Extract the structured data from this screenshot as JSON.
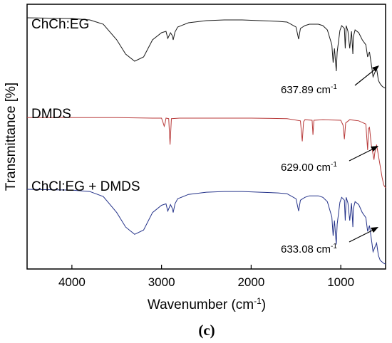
{
  "chart_data": {
    "type": "line",
    "title": "",
    "xlabel": "Wavenumber (cm",
    "xlabel_sup": "-1",
    "xlabel_end": ")",
    "ylabel": "Transmittance [%]",
    "panel_label": "(c)",
    "xlim": [
      4500,
      500
    ],
    "x_reversed": true,
    "xticks": [
      4000,
      3000,
      2000,
      1000
    ],
    "xtick_labels": [
      "4000",
      "3000",
      "2000",
      "1000"
    ],
    "y_ticks_shown": false,
    "series": [
      {
        "name": "ChCh:EG",
        "color": "#1a1a1a",
        "annotation": "637.89 cm",
        "annotation_sup": "-1",
        "annotation_x": 637.89,
        "x": [
          4500,
          4000,
          3800,
          3650,
          3500,
          3400,
          3300,
          3200,
          3100,
          3000,
          2950,
          2930,
          2900,
          2880,
          2870,
          2850,
          2820,
          2700,
          2500,
          2300,
          2100,
          1900,
          1700,
          1600,
          1500,
          1470,
          1450,
          1400,
          1350,
          1300,
          1250,
          1200,
          1150,
          1100,
          1085,
          1070,
          1050,
          1040,
          1010,
          990,
          960,
          950,
          940,
          920,
          900,
          880,
          865,
          860,
          840,
          800,
          760,
          720,
          700,
          680,
          650,
          640,
          620,
          600,
          580,
          560,
          540,
          520,
          500
        ],
        "y": [
          0.93,
          0.92,
          0.9,
          0.84,
          0.62,
          0.42,
          0.32,
          0.38,
          0.62,
          0.72,
          0.74,
          0.64,
          0.72,
          0.68,
          0.62,
          0.73,
          0.8,
          0.86,
          0.89,
          0.9,
          0.9,
          0.89,
          0.88,
          0.87,
          0.8,
          0.63,
          0.78,
          0.82,
          0.84,
          0.84,
          0.84,
          0.82,
          0.76,
          0.55,
          0.3,
          0.5,
          0.18,
          0.45,
          0.75,
          0.82,
          0.78,
          0.5,
          0.82,
          0.74,
          0.5,
          0.74,
          0.42,
          0.66,
          0.76,
          0.72,
          0.62,
          0.55,
          0.38,
          0.45,
          0.2,
          0.1,
          0.16,
          0.22,
          0.05,
          0.0,
          -0.03,
          -0.05,
          -0.06
        ]
      },
      {
        "name": "DMDS",
        "color": "#b83a3a",
        "annotation": "629.00 cm",
        "annotation_sup": "-1",
        "annotation_x": 629.0,
        "x": [
          4500,
          4000,
          3500,
          3100,
          3000,
          2985,
          2970,
          2960,
          2950,
          2920,
          2905,
          2890,
          2800,
          2500,
          2000,
          1600,
          1450,
          1430,
          1415,
          1400,
          1320,
          1310,
          1300,
          1200,
          1000,
          975,
          960,
          945,
          900,
          800,
          720,
          700,
          690,
          680,
          660,
          640,
          630,
          620,
          600,
          580,
          560,
          540,
          520,
          500
        ],
        "y": [
          0.8,
          0.8,
          0.8,
          0.79,
          0.79,
          0.72,
          0.64,
          0.7,
          0.79,
          0.78,
          0.3,
          0.78,
          0.79,
          0.79,
          0.79,
          0.78,
          0.74,
          0.36,
          0.72,
          0.76,
          0.75,
          0.48,
          0.75,
          0.76,
          0.75,
          0.66,
          0.4,
          0.7,
          0.76,
          0.74,
          0.68,
          0.2,
          0.6,
          0.62,
          0.3,
          0.12,
          0.02,
          0.15,
          0.3,
          0.1,
          -0.1,
          -0.3,
          -0.45,
          -0.5
        ]
      },
      {
        "name": "ChCl:EG + DMDS",
        "color": "#25338a",
        "annotation": "633.08 cm",
        "annotation_sup": "-1",
        "annotation_x": 633.08,
        "x": [
          4500,
          4000,
          3800,
          3650,
          3500,
          3400,
          3300,
          3200,
          3100,
          3000,
          2950,
          2930,
          2900,
          2880,
          2870,
          2850,
          2820,
          2700,
          2500,
          2300,
          2100,
          1900,
          1700,
          1600,
          1500,
          1470,
          1450,
          1400,
          1350,
          1300,
          1250,
          1200,
          1150,
          1100,
          1085,
          1070,
          1050,
          1040,
          1010,
          990,
          960,
          950,
          940,
          920,
          900,
          880,
          865,
          860,
          840,
          800,
          760,
          720,
          700,
          680,
          650,
          640,
          620,
          600,
          580,
          560,
          540,
          520,
          500
        ],
        "y": [
          0.98,
          0.97,
          0.95,
          0.88,
          0.66,
          0.46,
          0.36,
          0.42,
          0.66,
          0.76,
          0.78,
          0.68,
          0.77,
          0.72,
          0.66,
          0.78,
          0.85,
          0.91,
          0.94,
          0.95,
          0.95,
          0.94,
          0.93,
          0.92,
          0.85,
          0.68,
          0.83,
          0.87,
          0.89,
          0.89,
          0.89,
          0.87,
          0.81,
          0.6,
          0.34,
          0.55,
          0.22,
          0.5,
          0.8,
          0.87,
          0.83,
          0.55,
          0.87,
          0.79,
          0.55,
          0.79,
          0.46,
          0.71,
          0.81,
          0.77,
          0.66,
          0.59,
          0.4,
          0.48,
          0.22,
          0.12,
          0.18,
          0.24,
          0.07,
          0.0,
          -0.02,
          -0.04,
          -0.05
        ]
      }
    ]
  }
}
